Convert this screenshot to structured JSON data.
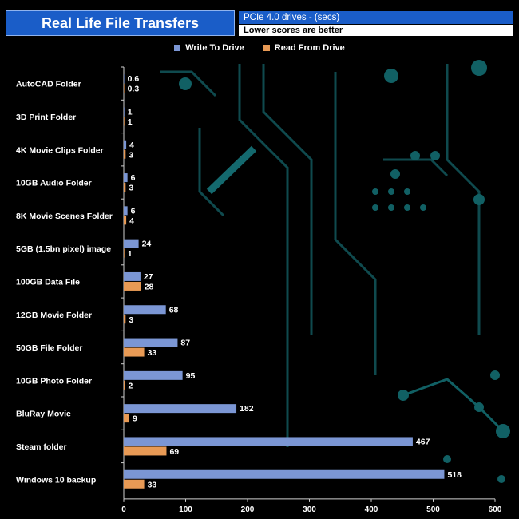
{
  "header": {
    "title": "Real Life File Transfers",
    "subtitle": "PCIe 4.0 drives - (secs)",
    "note": "Lower scores are better"
  },
  "colors": {
    "write": "#7b96d4",
    "read": "#e89a55",
    "title_bg": "#1a5dc8"
  },
  "chart_data": {
    "type": "bar",
    "orientation": "horizontal",
    "categories": [
      "AutoCAD Folder",
      "3D Print Folder",
      "4K Movie Clips Folder",
      "10GB Audio Folder",
      "8K Movie Scenes Folder",
      "5GB (1.5bn pixel) image",
      "100GB Data File",
      "12GB Movie Folder",
      "50GB File Folder",
      "10GB Photo Folder",
      "BluRay Movie",
      "Steam folder",
      "Windows 10 backup"
    ],
    "series": [
      {
        "name": "Write To  Drive",
        "values": [
          0.6,
          1,
          4,
          6,
          6,
          24,
          27,
          68,
          87,
          95,
          182,
          467,
          518
        ]
      },
      {
        "name": "Read From  Drive",
        "values": [
          0.3,
          1,
          3,
          3,
          4,
          1,
          28,
          3,
          33,
          2,
          9,
          69,
          33
        ]
      }
    ],
    "xlim": [
      0,
      600
    ],
    "xticks": [
      0,
      100,
      200,
      300,
      400,
      500,
      600
    ],
    "legend_position": "top-center"
  }
}
